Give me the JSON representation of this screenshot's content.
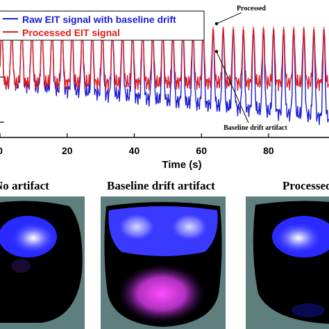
{
  "chart_data": {
    "type": "line",
    "xlabel": "Time (s)",
    "x_ticks": [
      "0",
      "20",
      "40",
      "60",
      "80"
    ],
    "xlim": [
      0,
      98
    ],
    "legend": {
      "placement": "top-left",
      "entries": [
        "Raw EIT signal with baseline drift",
        "Processed EIT signal"
      ]
    },
    "grid": false,
    "series": [
      {
        "name": "Raw EIT signal with baseline drift",
        "color": "#1a1ad6",
        "peak_times_s": [
          0.5,
          3.5,
          6.5,
          9.5,
          12.5,
          15.5,
          18.5,
          21.5,
          24.5,
          27.5,
          30.5,
          33.5,
          36.5,
          39.5,
          42.5,
          45.5,
          48.5,
          51.5,
          54.5,
          57.5,
          60.5,
          63.5,
          66.5,
          69.5,
          72.5,
          75.5,
          78.5,
          81.5,
          84.5,
          87.5,
          90.5,
          93.5,
          96.5
        ],
        "peak_level": 0.9,
        "trough_level_start": 0.44,
        "trough_level_end": 0.15,
        "breath_period_s": 3.0
      },
      {
        "name": "Processed EIT signal",
        "color": "#e01b1b",
        "peak_times_s": [
          0.5,
          3.5,
          6.5,
          9.5,
          12.5,
          15.5,
          18.5,
          21.5,
          24.5,
          27.5,
          30.5,
          33.5,
          36.5,
          39.5,
          42.5,
          45.5,
          48.5,
          51.5,
          54.5,
          57.5,
          60.5,
          63.5,
          66.5,
          69.5,
          72.5,
          75.5,
          78.5,
          81.5,
          84.5,
          87.5,
          90.5,
          93.5,
          96.5
        ],
        "peak_level": 0.9,
        "trough_level": 0.44,
        "breath_period_s": 3.0
      }
    ],
    "annotations": [
      {
        "text": "No artifact",
        "x": 4.5,
        "y_level": 0.93
      },
      {
        "text": "Processed",
        "x": 64.5,
        "y_level": 0.93
      },
      {
        "text": "Baseline drift artifact",
        "x": 64.5,
        "y_level": 0.7
      }
    ]
  },
  "panels": [
    {
      "title": "No artifact"
    },
    {
      "title": "Baseline drift artifact"
    },
    {
      "title": "Processed"
    }
  ],
  "colors": {
    "image_background": "#5f7f7f",
    "chest_region": "#000000",
    "ventilation_blue": "#4040ff",
    "ventilation_white": "#ffffff",
    "perfusion_magenta": "#c03cc8"
  }
}
